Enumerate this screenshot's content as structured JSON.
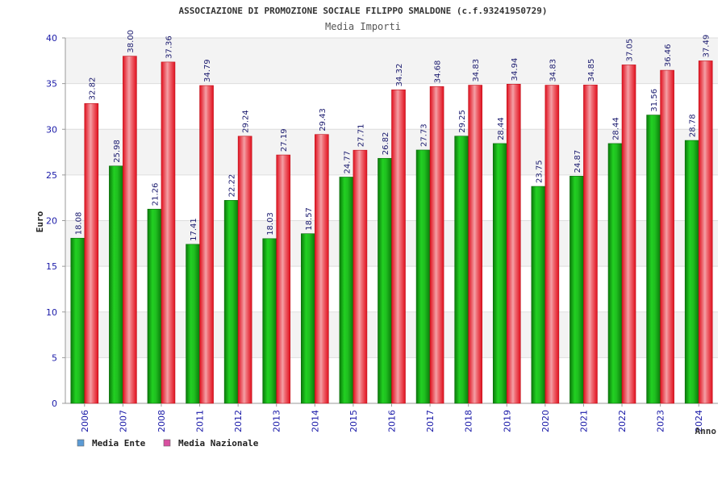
{
  "chart_data": {
    "type": "bar",
    "title": "ASSOCIAZIONE DI PROMOZIONE SOCIALE FILIPPO SMALDONE (c.f.93241950729)",
    "subtitle": "Media Importi",
    "ylabel": "Euro",
    "xlabel": "Anno",
    "ylim": [
      0,
      40
    ],
    "yticks": [
      0,
      5,
      10,
      15,
      20,
      25,
      30,
      35,
      40
    ],
    "grid": true,
    "legend_position": "bottom-left",
    "categories": [
      "2006",
      "2007",
      "2008",
      "2011",
      "2012",
      "2013",
      "2014",
      "2015",
      "2016",
      "2017",
      "2018",
      "2019",
      "2020",
      "2021",
      "2022",
      "2023",
      "2024"
    ],
    "series": [
      {
        "name": "Media Ente",
        "legend_color": "#5b9bd5",
        "bar_color": "#14b814",
        "values": [
          18.08,
          25.98,
          21.26,
          17.41,
          22.22,
          18.03,
          18.57,
          24.77,
          26.82,
          27.73,
          29.25,
          28.44,
          23.75,
          24.87,
          28.44,
          31.56,
          28.78
        ],
        "labels": [
          "18.08",
          "25.98",
          "21.26",
          "17.41",
          "22.22",
          "18.03",
          "18.57",
          "24.77",
          "26.82",
          "27.73",
          "29.25",
          "28.44",
          "23.75",
          "24.87",
          "28.44",
          "31.56",
          "28.78"
        ]
      },
      {
        "name": "Media Nazionale",
        "legend_color": "#d94fa0",
        "bar_color": "#ee1c2b",
        "values": [
          32.82,
          38.0,
          37.36,
          34.79,
          29.24,
          27.19,
          29.43,
          27.71,
          34.32,
          34.68,
          34.83,
          34.94,
          34.83,
          34.85,
          37.05,
          36.46,
          37.49
        ],
        "labels": [
          "32.82",
          "38.00",
          "37.36",
          "34.79",
          "29.24",
          "27.19",
          "29.43",
          "27.71",
          "34.32",
          "34.68",
          "34.83",
          "34.94",
          "34.83",
          "34.85",
          "37.05",
          "36.46",
          "37.49"
        ]
      }
    ]
  }
}
